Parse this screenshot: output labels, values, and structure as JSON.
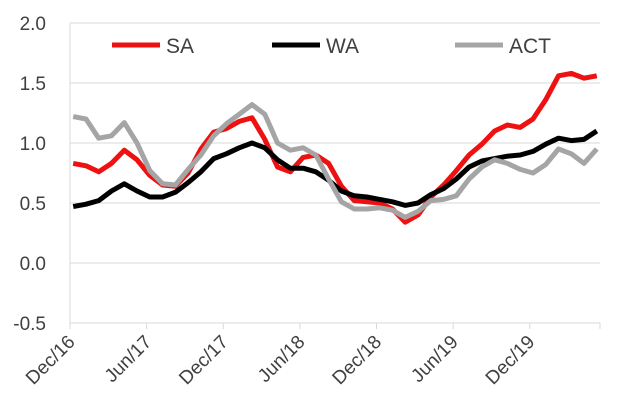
{
  "chart_data": {
    "type": "line",
    "title": "",
    "xlabel": "",
    "ylabel": "",
    "ylim": [
      -0.5,
      2.0
    ],
    "yticks": [
      "2.0",
      "1.5",
      "1.0",
      "0.5",
      "0.0",
      "-0.5"
    ],
    "ytick_values": [
      2.0,
      1.5,
      1.0,
      0.5,
      0.0,
      -0.5
    ],
    "x": [
      "Dec/16",
      "Jan/17",
      "Feb/17",
      "Mar/17",
      "Apr/17",
      "May/17",
      "Jun/17",
      "Jul/17",
      "Aug/17",
      "Sep/17",
      "Oct/17",
      "Nov/17",
      "Dec/17",
      "Jan/18",
      "Feb/18",
      "Mar/18",
      "Apr/18",
      "May/18",
      "Jun/18",
      "Jul/18",
      "Aug/18",
      "Sep/18",
      "Oct/18",
      "Nov/18",
      "Dec/18",
      "Jan/19",
      "Feb/19",
      "Mar/19",
      "Apr/19",
      "May/19",
      "Jun/19",
      "Jul/19",
      "Aug/19",
      "Sep/19",
      "Oct/19",
      "Nov/19",
      "Dec/19",
      "Jan/20",
      "Feb/20",
      "Mar/20",
      "Apr/20",
      "May/20"
    ],
    "xticks": [
      "Dec/16",
      "Jun/17",
      "Dec/17",
      "Jun/18",
      "Dec/18",
      "Jun/19",
      "Dec/19"
    ],
    "grid": true,
    "legend": "top",
    "series": [
      {
        "name": "SA",
        "color": "#ee1111",
        "values": [
          0.83,
          0.81,
          0.76,
          0.83,
          0.94,
          0.86,
          0.73,
          0.65,
          0.64,
          0.75,
          0.95,
          1.09,
          1.12,
          1.18,
          1.21,
          1.03,
          0.8,
          0.76,
          0.88,
          0.9,
          0.83,
          0.64,
          0.52,
          0.51,
          0.5,
          0.45,
          0.34,
          0.4,
          0.55,
          0.65,
          0.77,
          0.9,
          0.99,
          1.1,
          1.15,
          1.13,
          1.2,
          1.36,
          1.56,
          1.58,
          1.54,
          1.56
        ]
      },
      {
        "name": "WA",
        "color": "#000000",
        "values": [
          0.47,
          0.49,
          0.52,
          0.6,
          0.66,
          0.6,
          0.55,
          0.55,
          0.59,
          0.67,
          0.76,
          0.87,
          0.91,
          0.96,
          1.0,
          0.96,
          0.86,
          0.79,
          0.79,
          0.76,
          0.69,
          0.6,
          0.56,
          0.55,
          0.53,
          0.51,
          0.48,
          0.5,
          0.57,
          0.62,
          0.7,
          0.8,
          0.85,
          0.87,
          0.89,
          0.9,
          0.93,
          0.99,
          1.04,
          1.02,
          1.03,
          1.1
        ]
      },
      {
        "name": "ACT",
        "color": "#a5a5a5",
        "values": [
          1.22,
          1.2,
          1.04,
          1.06,
          1.17,
          1.0,
          0.77,
          0.66,
          0.65,
          0.78,
          0.9,
          1.06,
          1.16,
          1.24,
          1.32,
          1.24,
          1.0,
          0.94,
          0.96,
          0.9,
          0.7,
          0.51,
          0.45,
          0.45,
          0.46,
          0.44,
          0.38,
          0.43,
          0.52,
          0.53,
          0.56,
          0.7,
          0.8,
          0.86,
          0.83,
          0.78,
          0.75,
          0.82,
          0.95,
          0.91,
          0.83,
          0.95
        ]
      }
    ]
  }
}
